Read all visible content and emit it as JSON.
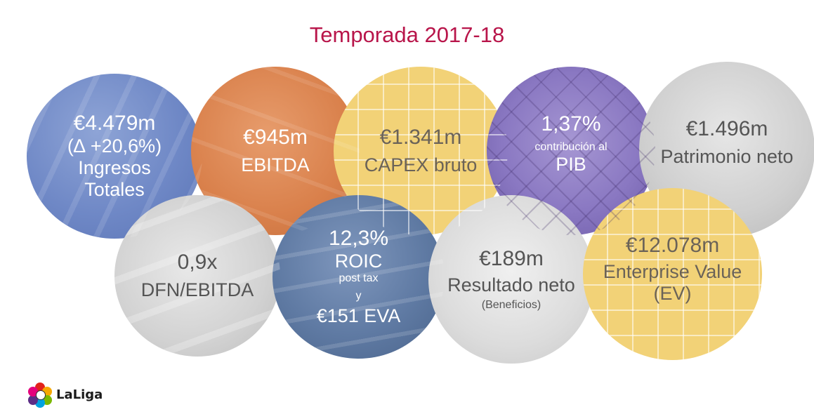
{
  "title": "Temporada 2017-18",
  "bubbles": {
    "ingresos": {
      "line1": "€4.479m",
      "line2": "(∆ +20,6%)",
      "line3": "Ingresos",
      "line4": "Totales"
    },
    "ebitda": {
      "line1": "€945m",
      "line2": "EBITDA"
    },
    "capex": {
      "line1": "€1.341m",
      "line2": "CAPEX bruto"
    },
    "pib": {
      "line1": "1,37%",
      "line2": "contribución al",
      "line3": "PIB"
    },
    "patrimonio": {
      "line1": "€1.496m",
      "line2": "Patrimonio neto"
    },
    "dfn": {
      "line1": "0,9x",
      "line2": "DFN/EBITDA"
    },
    "roic": {
      "line1": "12,3%",
      "line2": "ROIC",
      "line3": "post tax",
      "line4": "y",
      "line5": "€151 EVA"
    },
    "resultado": {
      "line1": "€189m",
      "line2": "Resultado neto",
      "line3": "(Beneficios)"
    },
    "ev": {
      "line1": "€12.078m",
      "line2": "Enterprise Value",
      "line3": "(EV)"
    }
  },
  "logo": {
    "text": "LaLiga"
  },
  "colors": {
    "title": "#b8154a",
    "blue": "#6f88c6",
    "orange": "#d9804b",
    "yellow": "#f2d277",
    "purple": "#8a78c2",
    "grey": "#cfcfcf",
    "steel": "#5f7aa3"
  }
}
